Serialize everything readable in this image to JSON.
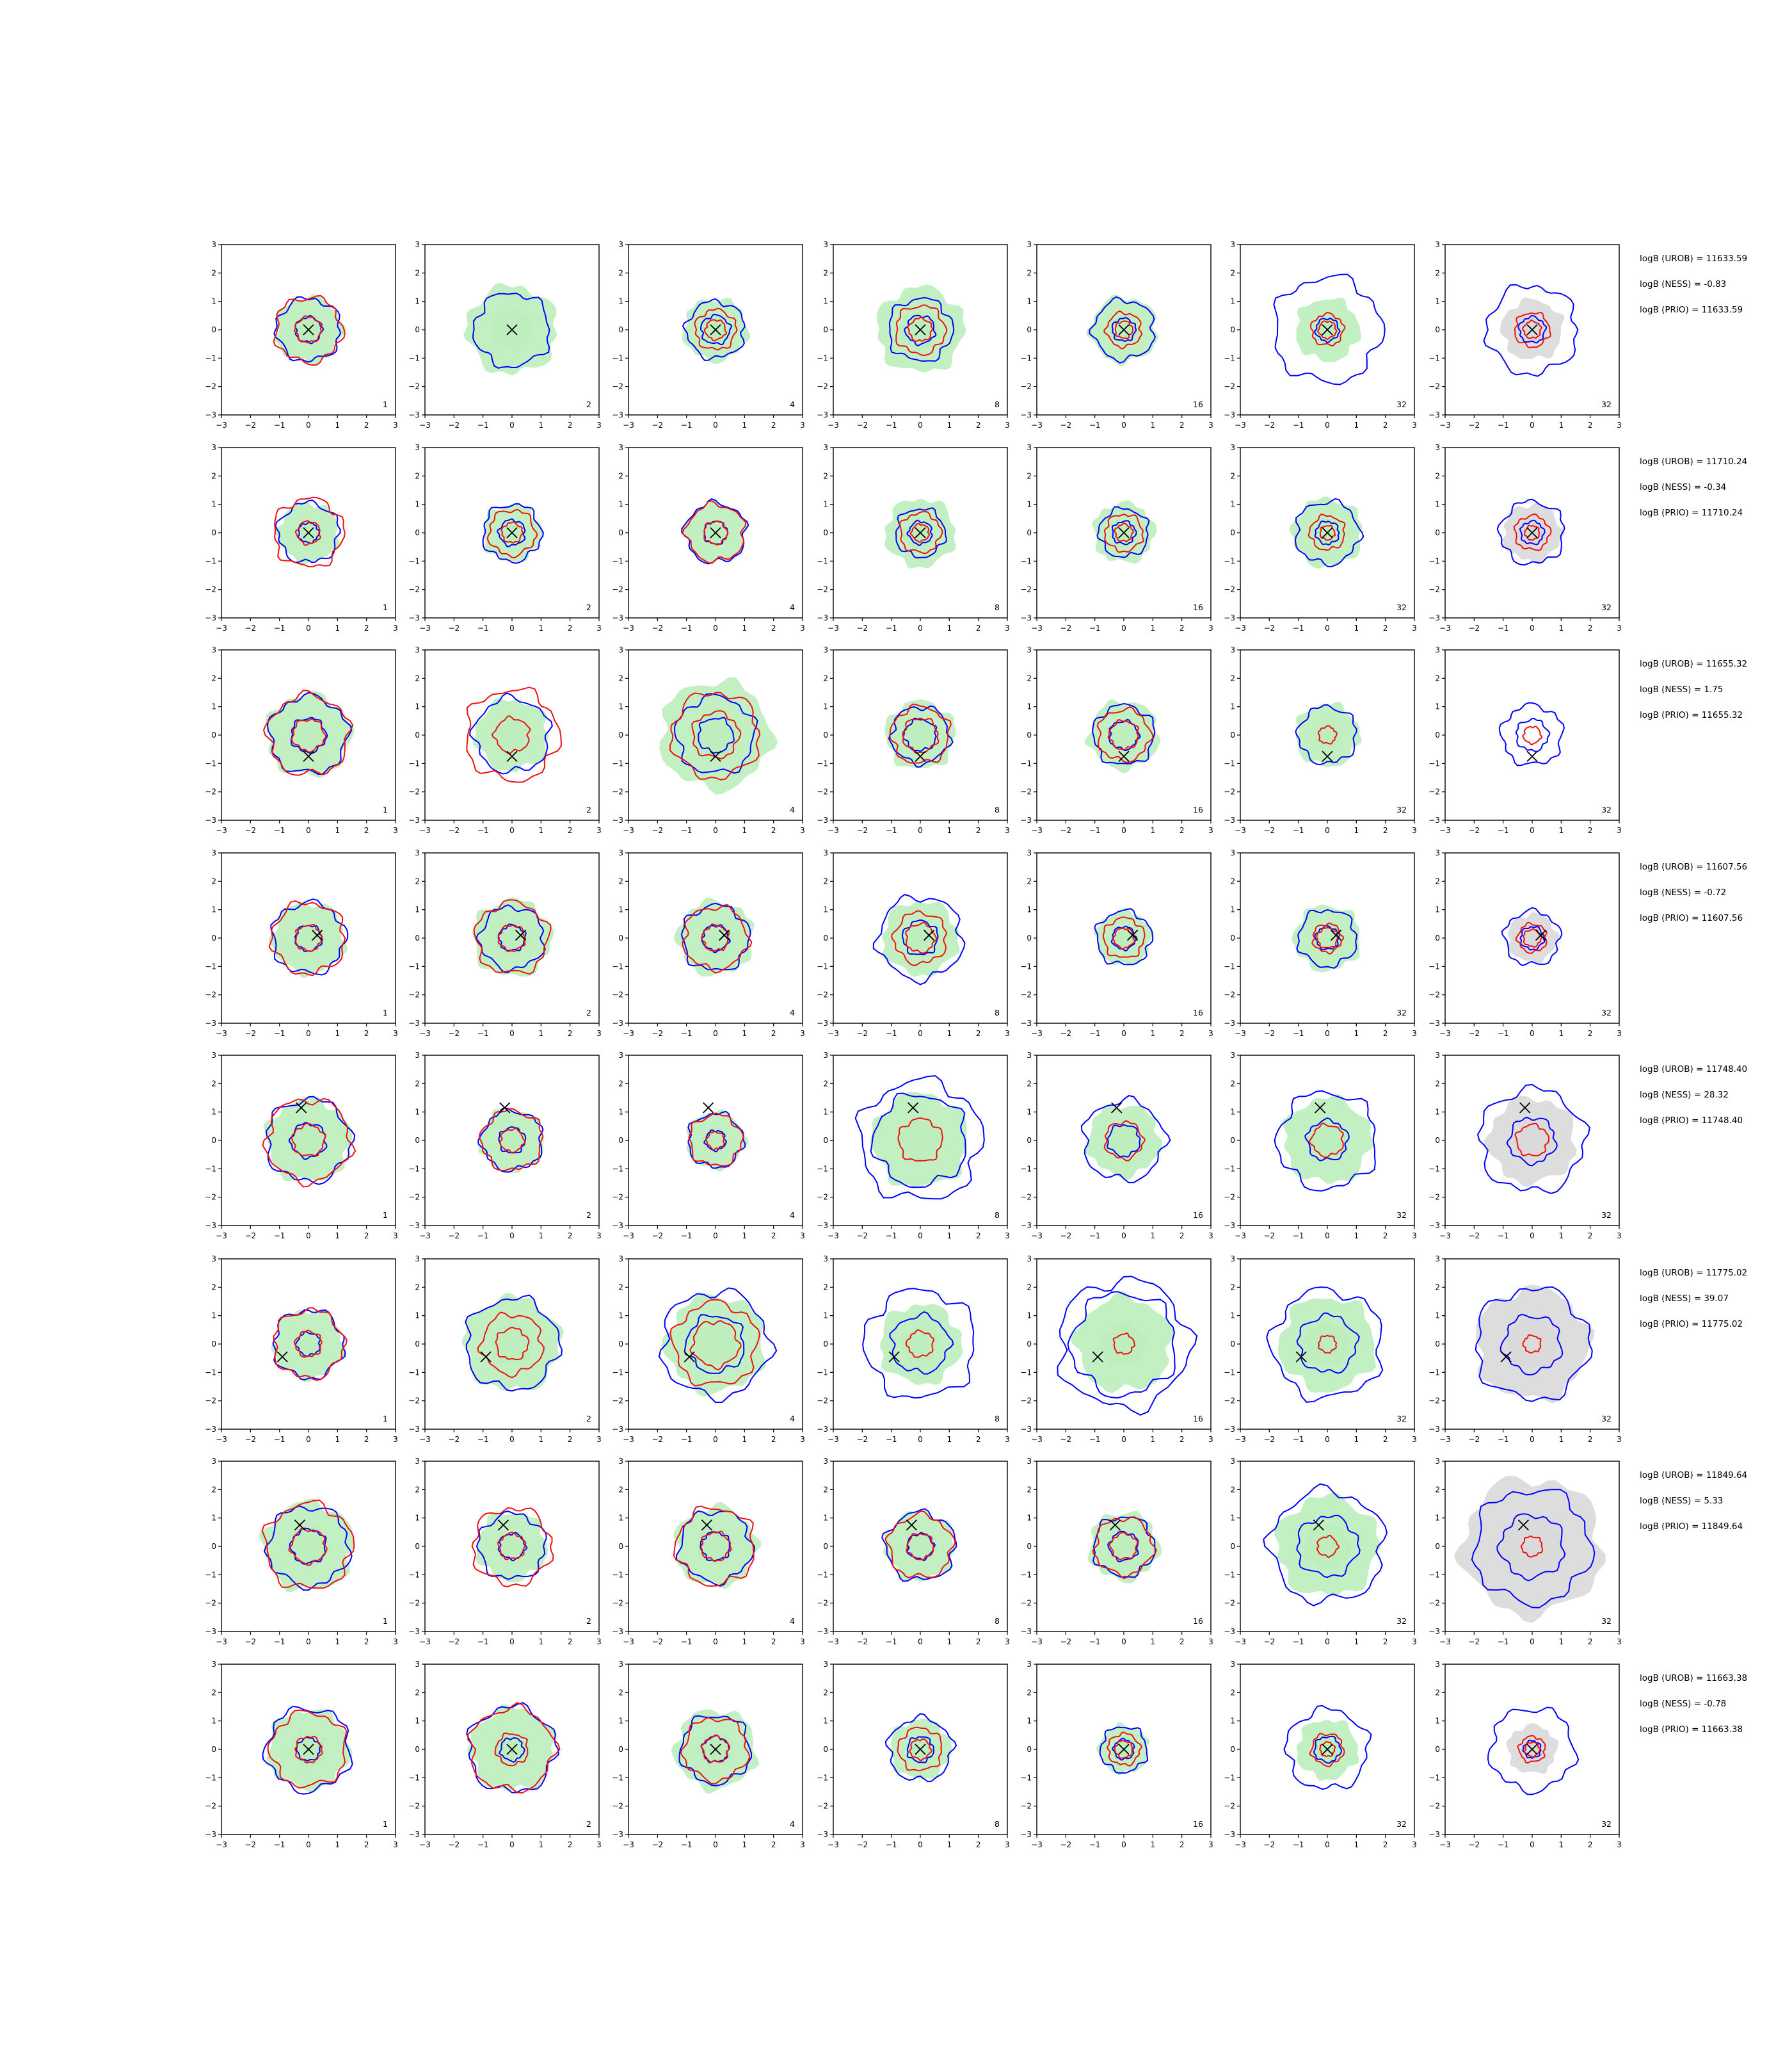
{
  "chart_data": {
    "type": "contour-grid",
    "rows": 8,
    "cols": 7,
    "panel_labels": [
      "1",
      "2",
      "4",
      "8",
      "16",
      "32",
      "32"
    ],
    "xlim": [
      -3,
      3
    ],
    "ylim": [
      -3,
      3
    ],
    "xticks": [
      "−3",
      "−2",
      "−1",
      "0",
      "1",
      "2",
      "3"
    ],
    "yticks": [
      "3",
      "2",
      "1",
      "0",
      "−1",
      "−2",
      "−3"
    ],
    "colors": {
      "blue": "#0000ff",
      "red": "#ee1111",
      "green_fill": "#bdeebd",
      "grey_fill": "#d9d9d9",
      "marker": "#000000"
    },
    "annotations": [
      {
        "urob": "logB (UROB) = 11633.59",
        "ness": "logB (NESS) = -0.83",
        "prio": "logB (PRIO) = 11633.59"
      },
      {
        "urob": "logB (UROB) = 11710.24",
        "ness": "logB (NESS) = -0.34",
        "prio": "logB (PRIO) = 11710.24"
      },
      {
        "urob": "logB (UROB) = 11655.32",
        "ness": "logB (NESS) = 1.75",
        "prio": "logB (PRIO) = 11655.32"
      },
      {
        "urob": "logB (UROB) = 11607.56",
        "ness": "logB (NESS) = -0.72",
        "prio": "logB (PRIO) = 11607.56"
      },
      {
        "urob": "logB (UROB) = 11748.40",
        "ness": "logB (NESS) = 28.32",
        "prio": "logB (PRIO) = 11748.40"
      },
      {
        "urob": "logB (UROB) = 11775.02",
        "ness": "logB (NESS) = 39.07",
        "prio": "logB (PRIO) = 11775.02"
      },
      {
        "urob": "logB (UROB) = 11849.64",
        "ness": "logB (NESS) = 5.33",
        "prio": "logB (PRIO) = 11849.64"
      },
      {
        "urob": "logB (UROB) = 11663.38",
        "ness": "logB (NESS) = -0.78",
        "prio": "logB (PRIO) = 11663.38"
      }
    ],
    "true_points": [
      [
        0,
        0
      ],
      [
        0,
        0
      ],
      [
        0,
        -0.75
      ],
      [
        0.3,
        0.1
      ],
      [
        -0.25,
        1.15
      ],
      [
        -0.9,
        -0.45
      ],
      [
        -0.3,
        0.75
      ],
      [
        0,
        0
      ]
    ],
    "contour_radii": [
      {
        "green": [
          1.15,
          1.55,
          1.1,
          1.5,
          1.15,
          1.1,
          1.05
        ],
        "blue": [
          [
            0.45,
            1.1
          ],
          [
            1.3
          ],
          [
            0.5,
            1.0
          ],
          [
            0.5,
            1.1
          ],
          [
            0.4,
            1.05
          ],
          [
            0.4,
            1.85
          ],
          [
            0.45,
            1.55
          ]
        ],
        "red": [
          [
            0.45,
            1.15
          ],
          [],
          [
            0.35,
            0.7
          ],
          [
            0.4,
            0.85
          ],
          [
            0.3,
            0.6
          ],
          [
            0.3,
            0.55
          ],
          [
            0.3,
            0.6
          ]
        ]
      },
      {
        "green": [
          1.05,
          1.0,
          1.05,
          1.2,
          1.05,
          1.2,
          1.0
        ],
        "blue": [
          [
            0.35,
            1.05
          ],
          [
            0.45,
            1.0
          ],
          [
            0.4,
            1.05
          ],
          [
            0.4,
            0.85
          ],
          [
            0.4,
            0.85
          ],
          [
            0.4,
            1.1
          ],
          [
            0.4,
            1.1
          ]
        ],
        "red": [
          [
            0.4,
            1.2
          ],
          [
            0.35,
            0.8
          ],
          [
            0.4,
            1.0
          ],
          [
            0.3,
            0.7
          ],
          [
            0.3,
            0.65
          ],
          [
            0.25,
            0.6
          ],
          [
            0.25,
            0.6
          ]
        ]
      },
      {
        "green": [
          1.45,
          1.25,
          1.9,
          1.2,
          1.2,
          1.1,
          0.0
        ],
        "blue": [
          [
            0.6,
            1.35
          ],
          [
            1.3
          ],
          [
            0.6,
            1.35
          ],
          [
            0.55,
            1.0
          ],
          [
            0.5,
            1.05
          ],
          [
            1.0
          ],
          [
            0.55,
            1.05
          ]
        ],
        "red": [
          [
            0.55,
            1.4
          ],
          [
            0.6,
            1.6
          ],
          [
            0.8,
            1.5
          ],
          [
            0.6,
            1.0
          ],
          [
            0.5,
            0.9
          ],
          [
            0.3
          ],
          [
            0.3
          ]
        ]
      },
      {
        "green": [
          1.25,
          1.35,
          1.3,
          1.3,
          0.95,
          1.15,
          0.85
        ],
        "blue": [
          [
            0.45,
            1.25
          ],
          [
            0.45,
            1.1
          ],
          [
            0.45,
            1.15
          ],
          [
            0.6,
            1.45
          ],
          [
            0.4,
            0.95
          ],
          [
            0.4,
            1.0
          ],
          [
            0.4,
            0.95
          ]
        ],
        "red": [
          [
            0.45,
            1.25
          ],
          [
            0.45,
            1.25
          ],
          [
            0.45,
            1.1
          ],
          [
            0.5,
            0.9
          ],
          [
            0.35,
            0.7
          ],
          [
            0.35,
            0.5
          ],
          [
            0.3,
            0.5
          ]
        ]
      },
      {
        "green": [
          1.45,
          1.1,
          1.0,
          1.65,
          1.25,
          1.5,
          1.5
        ],
        "blue": [
          [
            0.6,
            1.45
          ],
          [
            0.45,
            1.05
          ],
          [
            0.35,
            0.95
          ],
          [
            2.1,
            1.6
          ],
          [
            0.55,
            1.4
          ],
          [
            0.7,
            1.7
          ],
          [
            0.8,
            1.8
          ]
        ],
        "red": [
          [
            0.55,
            1.45
          ],
          [
            0.4,
            1.05
          ],
          [
            0.3,
            0.9
          ],
          [
            0.75
          ],
          [
            0.65
          ],
          [
            0.55
          ],
          [
            0.55
          ]
        ]
      },
      {
        "green": [
          1.2,
          1.65,
          1.7,
          1.4,
          1.65,
          1.65,
          1.95
        ],
        "blue": [
          [
            0.4,
            1.2
          ],
          [
            1.6
          ],
          [
            1.0,
            1.85
          ],
          [
            1.0,
            1.9
          ],
          [
            1.8,
            2.25
          ],
          [
            1.0,
            1.9
          ],
          [
            1.0,
            1.95
          ]
        ],
        "red": [
          [
            0.45,
            1.2
          ],
          [
            0.55,
            1.05
          ],
          [
            0.8,
            1.45
          ],
          [
            0.45
          ],
          [
            0.35
          ],
          [
            0.3
          ],
          [
            0.3
          ]
        ]
      },
      {
        "green": [
          1.55,
          1.2,
          1.4,
          1.2,
          1.2,
          1.75,
          2.4
        ],
        "blue": [
          [
            0.6,
            1.4
          ],
          [
            0.45,
            1.15
          ],
          [
            0.5,
            1.25
          ],
          [
            0.45,
            1.2
          ],
          [
            0.5,
            1.05
          ],
          [
            1.05,
            1.95
          ],
          [
            1.1,
            2.0
          ]
        ],
        "red": [
          [
            0.6,
            1.5
          ],
          [
            0.45,
            1.35
          ],
          [
            0.5,
            1.35
          ],
          [
            0.45,
            1.1
          ],
          [
            0.45,
            1.0
          ],
          [
            0.35
          ],
          [
            0.35
          ]
        ]
      },
      {
        "green": [
          1.4,
          1.45,
          1.4,
          1.05,
          0.85,
          1.05,
          0.85
        ],
        "blue": [
          [
            0.4,
            1.45
          ],
          [
            0.4,
            1.5
          ],
          [
            0.45,
            1.2
          ],
          [
            0.45,
            1.1
          ],
          [
            0.35,
            0.8
          ],
          [
            0.45,
            1.4
          ],
          [
            0.3,
            1.45
          ]
        ],
        "red": [
          [
            0.45,
            1.3
          ],
          [
            0.55,
            1.45
          ],
          [
            0.45,
            1.1
          ],
          [
            0.35,
            0.75
          ],
          [
            0.3,
            0.55
          ],
          [
            0.25,
            0.55
          ],
          [
            0.25,
            0.45
          ]
        ]
      }
    ]
  }
}
